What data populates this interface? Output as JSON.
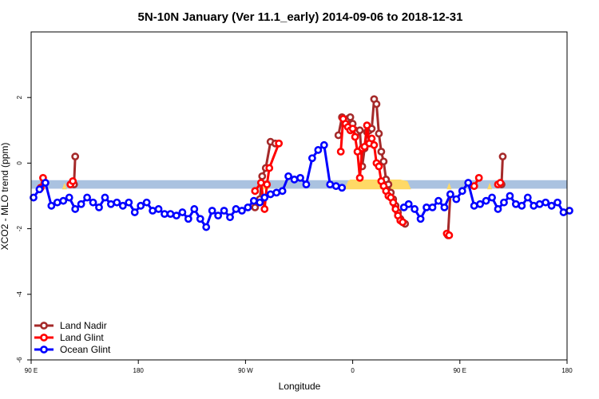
{
  "chart_data": {
    "type": "line",
    "title": "5N-10N January (Ver 11.1_early)   2014-09-06 to 2018-12-31",
    "xlabel": "Longitude",
    "ylabel": "XCO2 - MLO trend (ppm)",
    "xlim": [
      0,
      450
    ],
    "ylim": [
      -6,
      4
    ],
    "x_ticks": [
      {
        "x": 0,
        "label": "90 E"
      },
      {
        "x": 90,
        "label": "180"
      },
      {
        "x": 180,
        "label": "90 W"
      },
      {
        "x": 270,
        "label": "0"
      },
      {
        "x": 360,
        "label": "90 E"
      },
      {
        "x": 450,
        "label": "180"
      }
    ],
    "y_ticks": [
      {
        "y": -6,
        "label": "-6"
      },
      {
        "y": -4,
        "label": "-4"
      },
      {
        "y": -2,
        "label": "-2"
      },
      {
        "y": 0,
        "label": "0"
      },
      {
        "y": 2,
        "label": "2"
      }
    ],
    "grid": false,
    "legend_position": "bottom-left",
    "band": {
      "y_low": -0.78,
      "y_high": -0.52,
      "color": "#aac2e0"
    },
    "highlight_color": "#ffd966",
    "highlights": [
      {
        "x": [
          194,
          197,
          200
        ],
        "y": [
          -0.8,
          -0.5,
          -0.8
        ]
      },
      {
        "x": [
          263,
          266,
          268,
          272,
          276,
          282,
          288,
          294,
          300,
          306,
          310,
          316,
          319
        ],
        "y": [
          -0.8,
          -0.55,
          -0.5,
          -0.5,
          -0.5,
          -0.5,
          -0.5,
          -0.5,
          -0.5,
          -0.5,
          -0.5,
          -0.55,
          -0.8
        ]
      },
      {
        "x": [
          26,
          28,
          30
        ],
        "y": [
          -0.8,
          -0.6,
          -0.8
        ]
      },
      {
        "x": [
          349,
          351,
          353
        ],
        "y": [
          -0.8,
          -0.6,
          -0.8
        ]
      },
      {
        "x": [
          383,
          385,
          387
        ],
        "y": [
          -0.8,
          -0.6,
          -0.8
        ]
      }
    ],
    "series": [
      {
        "name": "Land Nadir",
        "color": "#a52a2a",
        "segments": [
          {
            "x": [
              36,
              37
            ],
            "y": [
              -0.65,
              0.2
            ]
          },
          {
            "x": [
              188,
              192,
              194,
              197,
              201,
              205
            ],
            "y": [
              -1.35,
              -1.1,
              -0.4,
              -0.15,
              0.65,
              0.6
            ]
          },
          {
            "x": [
              258,
              261,
              263,
              266,
              268,
              270,
              272,
              274,
              276,
              278,
              280,
              282,
              284,
              286,
              288,
              290,
              292,
              294,
              296,
              298,
              300,
              302,
              304,
              306,
              308,
              310,
              312,
              314
            ],
            "y": [
              0.85,
              1.4,
              1.25,
              1.35,
              1.4,
              1.2,
              1.0,
              0.95,
              1.0,
              -0.1,
              0.45,
              0.95,
              1.0,
              1.05,
              1.95,
              1.8,
              0.9,
              0.35,
              0.05,
              -0.5,
              -0.65,
              -0.9,
              -1.1,
              -1.3,
              -1.5,
              -1.7,
              -1.8,
              -1.85
            ]
          },
          {
            "x": [
              350,
              352
            ],
            "y": [
              -2.2,
              -0.95
            ]
          },
          {
            "x": [
              395,
              396
            ],
            "y": [
              -0.65,
              0.2
            ]
          }
        ]
      },
      {
        "name": "Land Glint",
        "color": "#ff0000",
        "segments": [
          {
            "x": [
              8,
              10
            ],
            "y": [
              -0.75,
              -0.45
            ]
          },
          {
            "x": [
              33,
              35
            ],
            "y": [
              -0.65,
              -0.55
            ]
          },
          {
            "x": [
              188,
              193,
              196,
              198,
              200,
              208
            ],
            "y": [
              -0.85,
              -0.6,
              -1.4,
              -0.65,
              -0.15,
              0.6
            ]
          },
          {
            "x": [
              260,
              262,
              264,
              266,
              268,
              270,
              272,
              274,
              276,
              278,
              280,
              282,
              284,
              286,
              288,
              290,
              292,
              294,
              296,
              298,
              300,
              302,
              304,
              306,
              308,
              310,
              312
            ],
            "y": [
              0.35,
              1.35,
              1.2,
              1.1,
              1.0,
              1.05,
              0.8,
              0.35,
              -0.45,
              0.45,
              0.5,
              1.15,
              0.6,
              0.75,
              0.55,
              0.0,
              -0.1,
              -0.55,
              -0.7,
              -0.85,
              -1.0,
              -1.05,
              -1.2,
              -1.4,
              -1.6,
              -1.75,
              -1.8
            ]
          },
          {
            "x": [
              349,
              351
            ],
            "y": [
              -2.15,
              -2.2
            ]
          },
          {
            "x": [
              372,
              376
            ],
            "y": [
              -0.7,
              -0.45
            ]
          },
          {
            "x": [
              392,
              394
            ],
            "y": [
              -0.65,
              -0.6
            ]
          }
        ]
      },
      {
        "name": "Ocean Glint",
        "color": "#0000ff",
        "segments": [
          {
            "x": [
              2,
              7,
              12,
              17,
              22,
              27,
              32,
              37,
              42,
              47,
              52,
              57,
              62,
              67,
              72,
              77,
              82,
              87,
              92,
              97,
              102,
              107,
              112,
              117,
              122,
              127,
              132,
              137,
              142,
              147,
              152,
              157,
              162,
              167,
              172,
              177,
              182,
              187,
              192,
              196,
              201,
              206,
              211,
              216,
              221,
              226,
              231,
              236,
              241,
              246,
              251,
              256,
              261
            ],
            "y": [
              -1.05,
              -0.8,
              -0.6,
              -1.3,
              -1.2,
              -1.15,
              -1.05,
              -1.4,
              -1.25,
              -1.05,
              -1.2,
              -1.35,
              -1.05,
              -1.25,
              -1.2,
              -1.3,
              -1.2,
              -1.5,
              -1.3,
              -1.2,
              -1.45,
              -1.4,
              -1.55,
              -1.55,
              -1.6,
              -1.5,
              -1.7,
              -1.4,
              -1.7,
              -1.95,
              -1.45,
              -1.6,
              -1.45,
              -1.65,
              -1.4,
              -1.45,
              -1.35,
              -1.15,
              -1.2,
              -1.05,
              -0.95,
              -0.9,
              -0.85,
              -0.4,
              -0.5,
              -0.45,
              -0.65,
              0.15,
              0.4,
              0.55,
              -0.65,
              -0.7,
              -0.75
            ]
          },
          {
            "x": [
              313,
              317,
              322,
              327,
              332,
              337,
              342,
              347,
              352,
              357,
              362,
              367,
              372,
              377,
              382,
              387,
              392,
              397,
              402,
              407,
              412,
              417,
              422,
              427,
              432,
              437,
              442,
              447,
              452
            ],
            "y": [
              -1.35,
              -1.25,
              -1.4,
              -1.7,
              -1.35,
              -1.35,
              -1.15,
              -1.35,
              -0.95,
              -1.1,
              -0.85,
              -0.6,
              -1.3,
              -1.25,
              -1.15,
              -1.05,
              -1.4,
              -1.2,
              -1.0,
              -1.25,
              -1.3,
              -1.05,
              -1.3,
              -1.25,
              -1.2,
              -1.3,
              -1.2,
              -1.5,
              -1.45
            ]
          }
        ]
      }
    ]
  }
}
